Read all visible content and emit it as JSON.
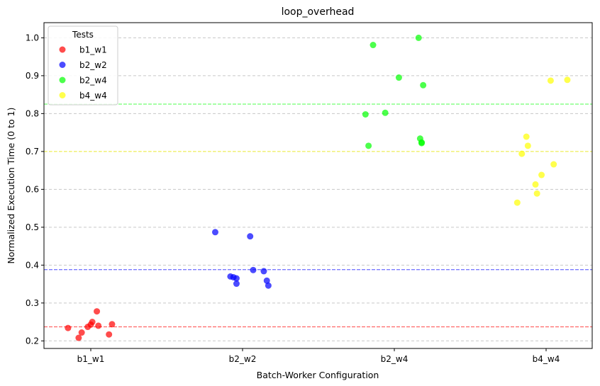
{
  "chart_data": {
    "type": "scatter",
    "title": "loop_overhead",
    "xlabel": "Batch-Worker Configuration",
    "ylabel": "Normalized Execution Time (0 to 1)",
    "categories": [
      "b1_w1",
      "b2_w2",
      "b2_w4",
      "b4_w4"
    ],
    "ylim": [
      0.18,
      1.04
    ],
    "yticks": [
      0.2,
      0.3,
      0.4,
      0.5,
      0.6,
      0.7,
      0.8,
      0.9,
      1.0
    ],
    "ytick_labels": [
      "0.2",
      "0.3",
      "0.4",
      "0.5",
      "0.6",
      "0.7",
      "0.8",
      "0.9",
      "1.0"
    ],
    "grid": "y-dashed",
    "legend": {
      "title": "Tests",
      "position": "top-left"
    },
    "series": [
      {
        "name": "b1_w1",
        "color": "#ff0000",
        "mean_line": 0.237,
        "points": [
          {
            "x": -0.15,
            "y": 0.234
          },
          {
            "x": -0.08,
            "y": 0.208
          },
          {
            "x": -0.06,
            "y": 0.222
          },
          {
            "x": -0.02,
            "y": 0.237
          },
          {
            "x": 0.0,
            "y": 0.243
          },
          {
            "x": 0.01,
            "y": 0.25
          },
          {
            "x": 0.04,
            "y": 0.278
          },
          {
            "x": 0.05,
            "y": 0.24
          },
          {
            "x": 0.12,
            "y": 0.217
          },
          {
            "x": 0.14,
            "y": 0.244
          }
        ]
      },
      {
        "name": "b2_w2",
        "color": "#0000ff",
        "mean_line": 0.388,
        "points": [
          {
            "x": -0.18,
            "y": 0.487
          },
          {
            "x": -0.08,
            "y": 0.37
          },
          {
            "x": -0.06,
            "y": 0.368
          },
          {
            "x": -0.04,
            "y": 0.351
          },
          {
            "x": -0.04,
            "y": 0.365
          },
          {
            "x": 0.05,
            "y": 0.476
          },
          {
            "x": 0.07,
            "y": 0.387
          },
          {
            "x": 0.14,
            "y": 0.384
          },
          {
            "x": 0.16,
            "y": 0.359
          },
          {
            "x": 0.17,
            "y": 0.346
          }
        ]
      },
      {
        "name": "b2_w4",
        "color": "#00ff00",
        "mean_line": 0.825,
        "points": [
          {
            "x": -0.19,
            "y": 0.798
          },
          {
            "x": -0.17,
            "y": 0.715
          },
          {
            "x": -0.14,
            "y": 0.981
          },
          {
            "x": -0.06,
            "y": 0.802
          },
          {
            "x": 0.03,
            "y": 0.895
          },
          {
            "x": 0.16,
            "y": 1.0
          },
          {
            "x": 0.17,
            "y": 0.734
          },
          {
            "x": 0.18,
            "y": 0.722
          },
          {
            "x": 0.18,
            "y": 0.724
          },
          {
            "x": 0.19,
            "y": 0.875
          }
        ]
      },
      {
        "name": "b4_w4",
        "color": "#ffff00",
        "mean_line": 0.7,
        "points": [
          {
            "x": -0.19,
            "y": 0.565
          },
          {
            "x": -0.16,
            "y": 0.694
          },
          {
            "x": -0.13,
            "y": 0.739
          },
          {
            "x": -0.12,
            "y": 0.715
          },
          {
            "x": -0.07,
            "y": 0.613
          },
          {
            "x": -0.06,
            "y": 0.589
          },
          {
            "x": -0.03,
            "y": 0.638
          },
          {
            "x": 0.03,
            "y": 0.887
          },
          {
            "x": 0.05,
            "y": 0.666
          },
          {
            "x": 0.14,
            "y": 0.889
          }
        ]
      }
    ]
  }
}
